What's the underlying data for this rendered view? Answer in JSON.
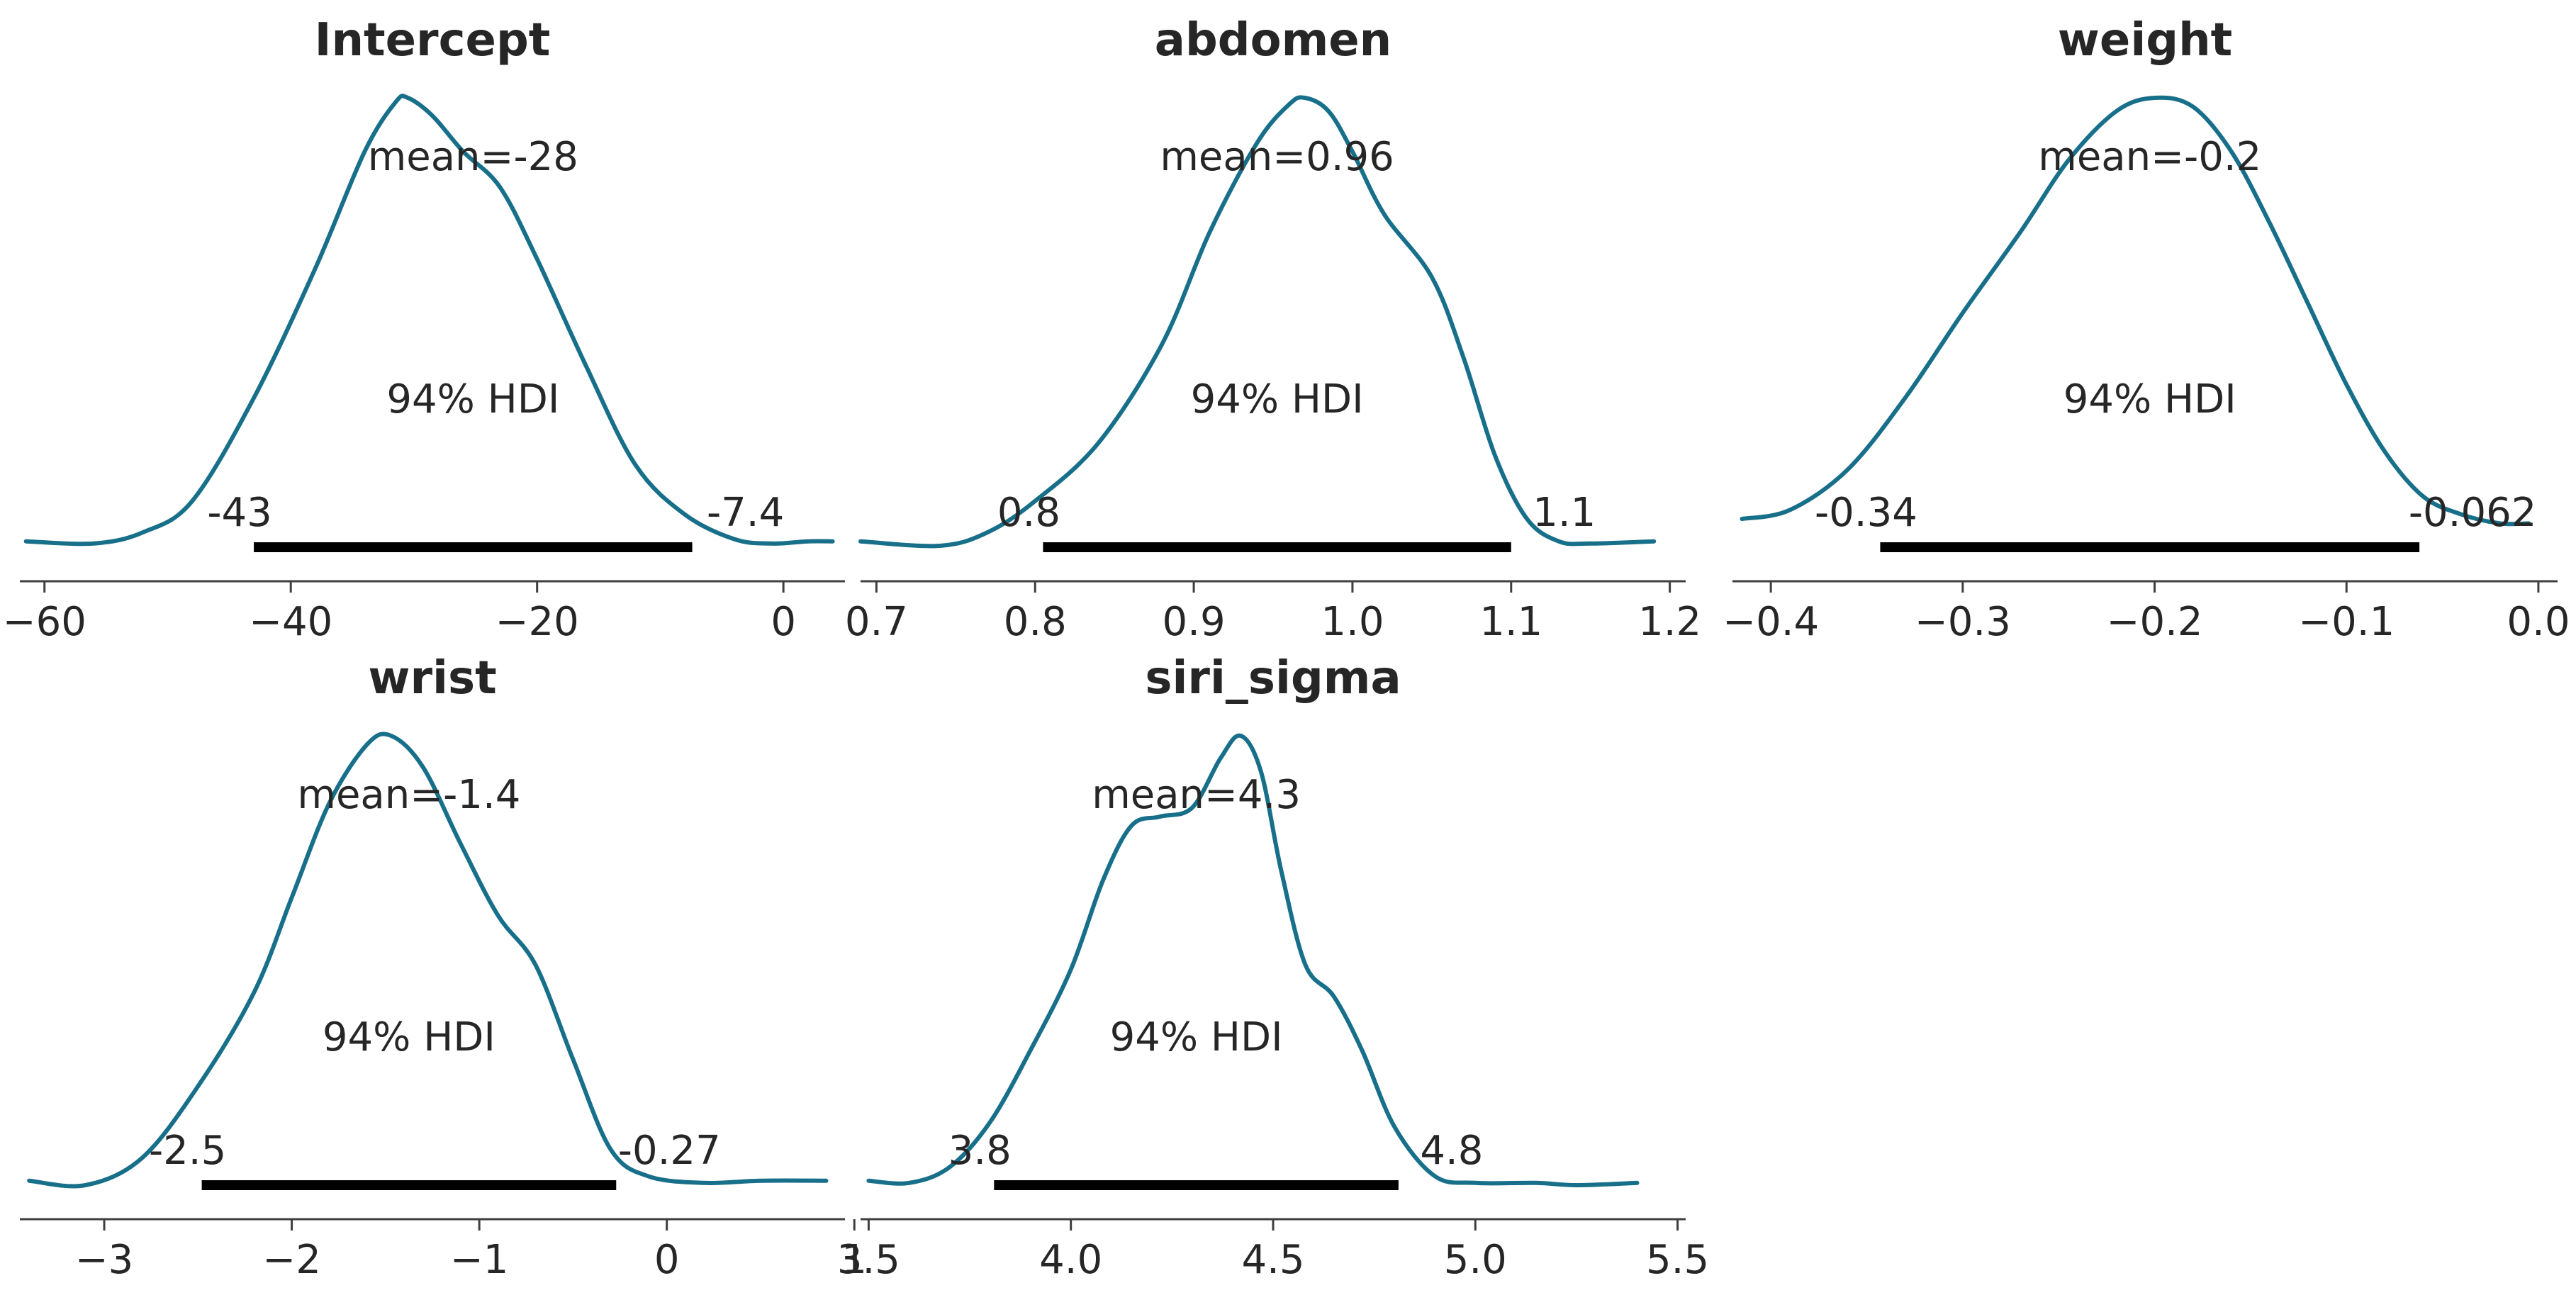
{
  "chart_data": {
    "type": "posterior_density",
    "colors": {
      "density": "#176f8a",
      "hdi_bar": "#000000",
      "text": "#262626",
      "axis": "#3f3f3f"
    },
    "panels": [
      {
        "title": "Intercept",
        "mean_label": "mean=-28",
        "hdi_label": "94% HDI",
        "hdi_low_label": "-43",
        "hdi_high_label": "-7.4",
        "hdi": [
          -43,
          -7.4
        ],
        "xlim": [
          -62,
          5
        ],
        "ticks": [
          -60,
          -40,
          -20,
          0
        ],
        "tick_labels": [
          "−60",
          "−40",
          "−20",
          "0"
        ],
        "density": [
          [
            -61.5,
            0.01
          ],
          [
            -56,
            0.005
          ],
          [
            -52,
            0.03
          ],
          [
            -48,
            0.1
          ],
          [
            -43,
            0.33
          ],
          [
            -38,
            0.62
          ],
          [
            -34,
            0.88
          ],
          [
            -31.5,
            0.99
          ],
          [
            -30.5,
            1.0
          ],
          [
            -28.5,
            0.96
          ],
          [
            -26,
            0.88
          ],
          [
            -23,
            0.8
          ],
          [
            -20,
            0.64
          ],
          [
            -16,
            0.4
          ],
          [
            -12,
            0.18
          ],
          [
            -8,
            0.07
          ],
          [
            -4,
            0.015
          ],
          [
            -1,
            0.005
          ],
          [
            2,
            0.01
          ],
          [
            4,
            0.01
          ]
        ]
      },
      {
        "title": "abdomen",
        "mean_label": "mean=0.96",
        "hdi_label": "94% HDI",
        "hdi_low_label": "0.8",
        "hdi_high_label": "1.1",
        "hdi": [
          0.805,
          1.1
        ],
        "xlim": [
          0.69,
          1.21
        ],
        "ticks": [
          0.7,
          0.8,
          0.9,
          1.0,
          1.1,
          1.2
        ],
        "tick_labels": [
          "0.7",
          "0.8",
          "0.9",
          "1.0",
          "1.1",
          "1.2"
        ],
        "density": [
          [
            0.69,
            0.01
          ],
          [
            0.74,
            0.0
          ],
          [
            0.77,
            0.03
          ],
          [
            0.8,
            0.1
          ],
          [
            0.84,
            0.23
          ],
          [
            0.88,
            0.45
          ],
          [
            0.91,
            0.7
          ],
          [
            0.94,
            0.9
          ],
          [
            0.96,
            0.985
          ],
          [
            0.97,
            1.0
          ],
          [
            0.985,
            0.97
          ],
          [
            1.0,
            0.88
          ],
          [
            1.02,
            0.74
          ],
          [
            1.05,
            0.6
          ],
          [
            1.07,
            0.42
          ],
          [
            1.09,
            0.2
          ],
          [
            1.11,
            0.06
          ],
          [
            1.13,
            0.01
          ],
          [
            1.15,
            0.005
          ],
          [
            1.19,
            0.01
          ]
        ]
      },
      {
        "title": "weight",
        "mean_label": "mean=-0.2",
        "hdi_label": "94% HDI",
        "hdi_low_label": "-0.34",
        "hdi_high_label": "-0.062",
        "hdi": [
          -0.343,
          -0.062
        ],
        "xlim": [
          -0.42,
          0.01
        ],
        "ticks": [
          -0.4,
          -0.3,
          -0.2,
          -0.1,
          0.0
        ],
        "tick_labels": [
          "−0.4",
          "−0.3",
          "−0.2",
          "−0.1",
          "0.0"
        ],
        "density": [
          [
            -0.415,
            0.06
          ],
          [
            -0.39,
            0.08
          ],
          [
            -0.36,
            0.17
          ],
          [
            -0.33,
            0.33
          ],
          [
            -0.3,
            0.52
          ],
          [
            -0.27,
            0.7
          ],
          [
            -0.245,
            0.86
          ],
          [
            -0.22,
            0.97
          ],
          [
            -0.2,
            1.0
          ],
          [
            -0.18,
            0.98
          ],
          [
            -0.16,
            0.88
          ],
          [
            -0.14,
            0.72
          ],
          [
            -0.12,
            0.54
          ],
          [
            -0.1,
            0.36
          ],
          [
            -0.08,
            0.21
          ],
          [
            -0.06,
            0.11
          ],
          [
            -0.04,
            0.07
          ],
          [
            -0.02,
            0.05
          ],
          [
            -0.005,
            0.05
          ]
        ]
      },
      {
        "title": "wrist",
        "mean_label": "mean=-1.4",
        "hdi_label": "94% HDI",
        "hdi_low_label": "-2.5",
        "hdi_high_label": "-0.27",
        "hdi": [
          -2.48,
          -0.27
        ],
        "xlim": [
          -3.45,
          0.95
        ],
        "ticks": [
          -3,
          -2,
          -1,
          0,
          1
        ],
        "tick_labels": [
          "−3",
          "−2",
          "−1",
          "0",
          "1"
        ],
        "density": [
          [
            -3.4,
            0.01
          ],
          [
            -3.1,
            0.0
          ],
          [
            -2.8,
            0.06
          ],
          [
            -2.5,
            0.22
          ],
          [
            -2.2,
            0.43
          ],
          [
            -2.0,
            0.64
          ],
          [
            -1.8,
            0.85
          ],
          [
            -1.6,
            0.98
          ],
          [
            -1.47,
            1.0
          ],
          [
            -1.3,
            0.93
          ],
          [
            -1.1,
            0.76
          ],
          [
            -0.9,
            0.6
          ],
          [
            -0.7,
            0.49
          ],
          [
            -0.5,
            0.28
          ],
          [
            -0.3,
            0.08
          ],
          [
            -0.1,
            0.02
          ],
          [
            0.2,
            0.005
          ],
          [
            0.5,
            0.01
          ],
          [
            0.85,
            0.01
          ]
        ]
      },
      {
        "title": "siri_sigma",
        "mean_label": "mean=4.3",
        "hdi_label": "94% HDI",
        "hdi_low_label": "3.8",
        "hdi_high_label": "4.8",
        "hdi": [
          3.81,
          4.81
        ],
        "xlim": [
          3.48,
          5.52
        ],
        "ticks": [
          3.5,
          4.0,
          4.5,
          5.0,
          5.5
        ],
        "tick_labels": [
          "3.5",
          "4.0",
          "4.5",
          "5.0",
          "5.5"
        ],
        "density": [
          [
            3.5,
            0.01
          ],
          [
            3.6,
            0.005
          ],
          [
            3.7,
            0.04
          ],
          [
            3.8,
            0.14
          ],
          [
            3.9,
            0.3
          ],
          [
            4.0,
            0.48
          ],
          [
            4.08,
            0.68
          ],
          [
            4.15,
            0.8
          ],
          [
            4.22,
            0.82
          ],
          [
            4.3,
            0.84
          ],
          [
            4.37,
            0.95
          ],
          [
            4.42,
            1.0
          ],
          [
            4.47,
            0.92
          ],
          [
            4.52,
            0.7
          ],
          [
            4.58,
            0.49
          ],
          [
            4.65,
            0.42
          ],
          [
            4.72,
            0.3
          ],
          [
            4.8,
            0.13
          ],
          [
            4.9,
            0.02
          ],
          [
            5.0,
            0.005
          ],
          [
            5.15,
            0.005
          ],
          [
            5.25,
            0.0
          ],
          [
            5.4,
            0.005
          ]
        ]
      }
    ]
  }
}
